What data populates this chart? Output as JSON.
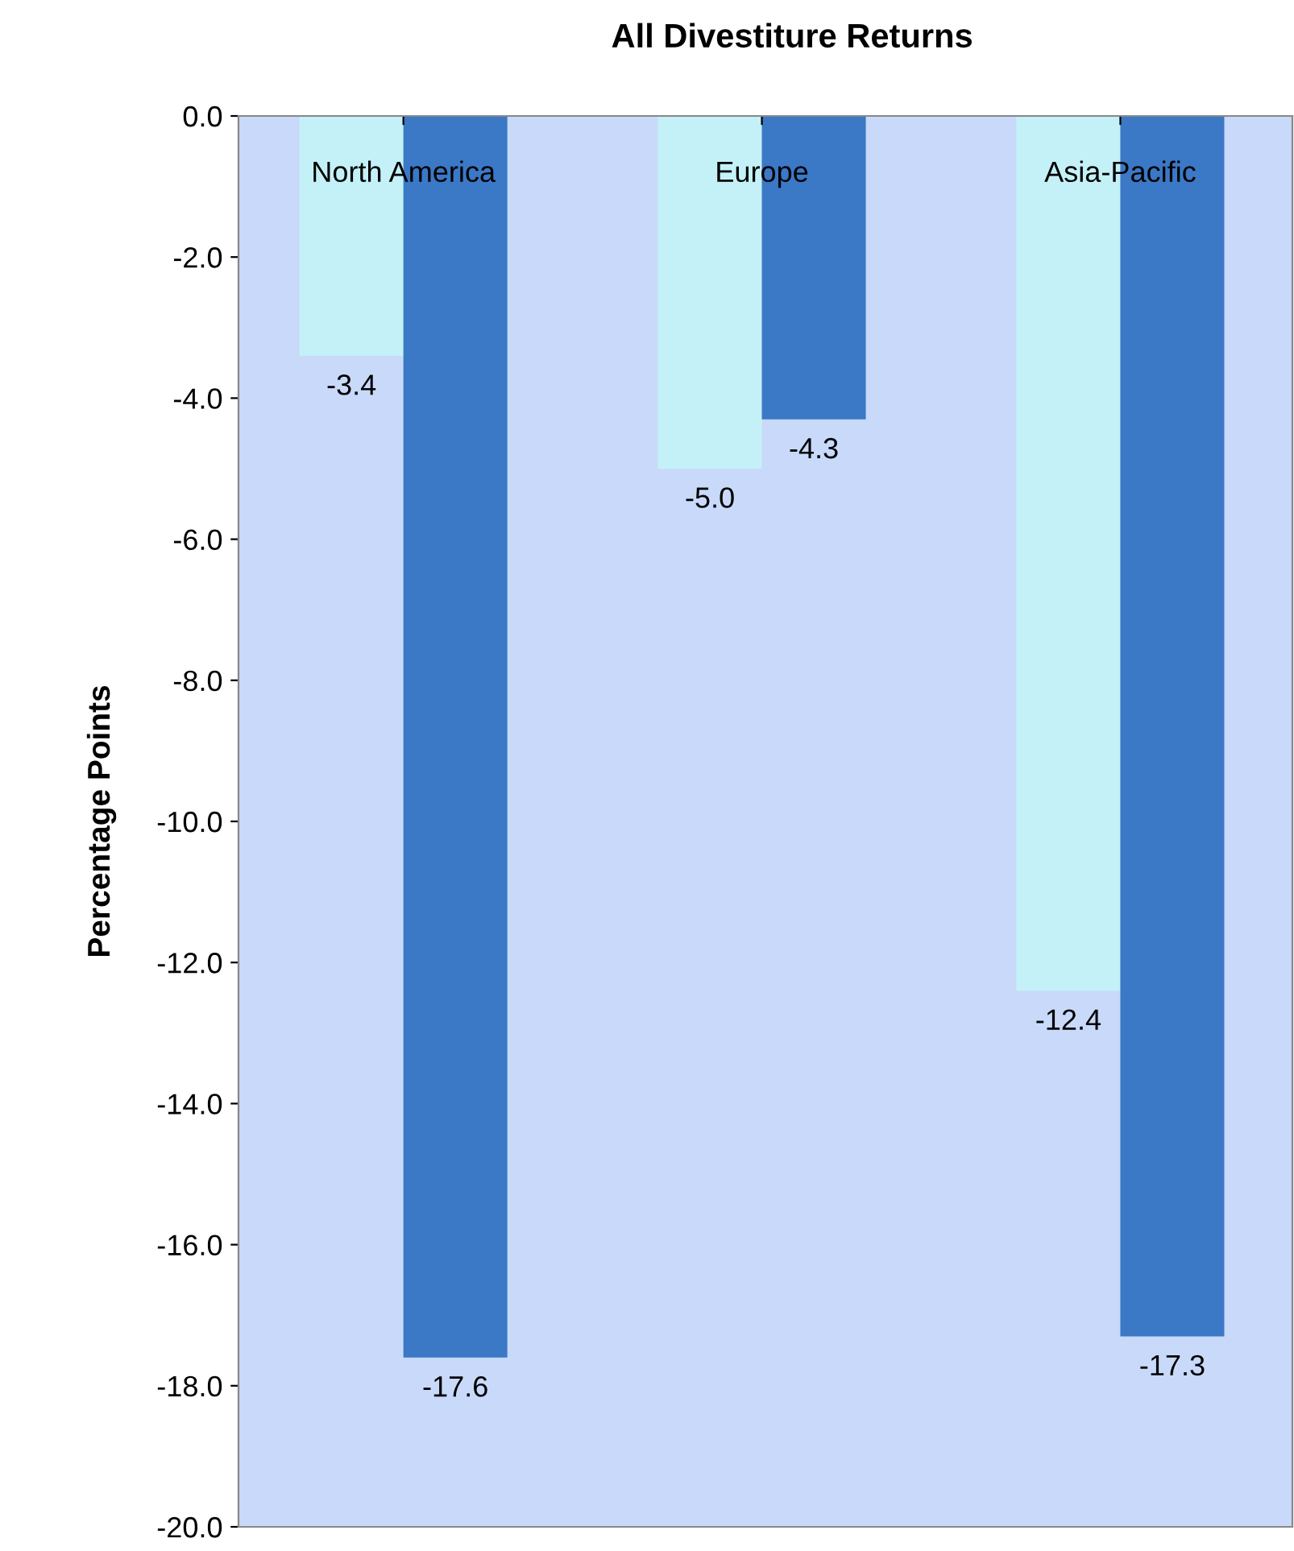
{
  "chart_data": {
    "type": "bar",
    "title": "All Divestiture Returns",
    "ylabel": "Percentage Points",
    "categories": [
      "North America",
      "Europe",
      "Asia-Pacific"
    ],
    "series": [
      {
        "color": "#c4f1f7",
        "values": [
          -3.4,
          -5.0,
          -12.4
        ],
        "value_labels": [
          "-3.4",
          "-5.0",
          "-12.4"
        ]
      },
      {
        "color": "#3b78c6",
        "values": [
          -17.6,
          -4.3,
          -17.3
        ],
        "value_labels": [
          "-17.6",
          "-4.3",
          "-17.3"
        ]
      }
    ],
    "ylim": [
      -20,
      0
    ],
    "yticks": [
      {
        "value": 0,
        "label": "0.0"
      },
      {
        "value": -2,
        "label": "-2.0"
      },
      {
        "value": -4,
        "label": "-4.0"
      },
      {
        "value": -6,
        "label": "-6.0"
      },
      {
        "value": -8,
        "label": "-8.0"
      },
      {
        "value": -10,
        "label": "-10.0"
      },
      {
        "value": -12,
        "label": "-12.0"
      },
      {
        "value": -14,
        "label": "-14.0"
      },
      {
        "value": -16,
        "label": "-16.0"
      },
      {
        "value": -18,
        "label": "-18.0"
      },
      {
        "value": -20,
        "label": "-20.0"
      }
    ],
    "grid": false,
    "legend": false
  }
}
